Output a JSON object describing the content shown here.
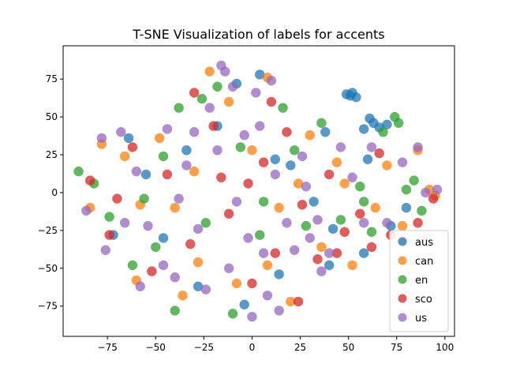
{
  "chart_data": {
    "type": "scatter",
    "title": "T-SNE Visualization of labels for accents",
    "xlabel": "",
    "ylabel": "",
    "xlim": [
      -98,
      105
    ],
    "ylim": [
      -95,
      97
    ],
    "xticks": [
      -75,
      -50,
      -25,
      0,
      25,
      50,
      75,
      100
    ],
    "yticks": [
      -75,
      -50,
      -25,
      0,
      25,
      50,
      75
    ],
    "xtick_labels": [
      "−75",
      "−50",
      "−25",
      "0",
      "25",
      "50",
      "75",
      "100"
    ],
    "ytick_labels": [
      "−75",
      "−50",
      "−25",
      "0",
      "25",
      "50",
      "75"
    ],
    "grid": false,
    "legend_position": "lower-right",
    "series": [
      {
        "name": "aus",
        "color": "#1f77b4",
        "points": [
          [
            51,
            64
          ],
          [
            52,
            66
          ],
          [
            49,
            65
          ],
          [
            54,
            63
          ],
          [
            63,
            46
          ],
          [
            66,
            43
          ],
          [
            70,
            45
          ],
          [
            61,
            49
          ],
          [
            58,
            42
          ],
          [
            -64,
            36
          ],
          [
            -55,
            12
          ],
          [
            -34,
            28
          ],
          [
            -18,
            44
          ],
          [
            -8,
            72
          ],
          [
            4,
            78
          ],
          [
            12,
            22
          ],
          [
            20,
            18
          ],
          [
            32,
            -6
          ],
          [
            42,
            -24
          ],
          [
            58,
            -40
          ],
          [
            72,
            -22
          ],
          [
            80,
            -10
          ],
          [
            60,
            22
          ],
          [
            38,
            40
          ],
          [
            -72,
            -28
          ],
          [
            -46,
            -30
          ],
          [
            -28,
            -62
          ],
          [
            -4,
            -74
          ],
          [
            14,
            -54
          ],
          [
            40,
            -48
          ]
        ]
      },
      {
        "name": "can",
        "color": "#ff7f0e",
        "points": [
          [
            -78,
            32
          ],
          [
            -66,
            24
          ],
          [
            -58,
            -8
          ],
          [
            -40,
            -10
          ],
          [
            -30,
            14
          ],
          [
            -22,
            80
          ],
          [
            -12,
            60
          ],
          [
            8,
            76
          ],
          [
            24,
            6
          ],
          [
            30,
            38
          ],
          [
            44,
            20
          ],
          [
            52,
            -48
          ],
          [
            64,
            -10
          ],
          [
            78,
            -22
          ],
          [
            86,
            28
          ],
          [
            95,
            -2
          ],
          [
            92,
            2
          ],
          [
            -84,
            -10
          ],
          [
            -60,
            -58
          ],
          [
            -36,
            -68
          ],
          [
            -8,
            -60
          ],
          [
            8,
            -48
          ],
          [
            20,
            -72
          ],
          [
            36,
            -36
          ],
          [
            -48,
            36
          ],
          [
            -28,
            -46
          ],
          [
            0,
            28
          ],
          [
            14,
            -10
          ],
          [
            48,
            6
          ],
          [
            70,
            18
          ]
        ]
      },
      {
        "name": "en",
        "color": "#2ca02c",
        "points": [
          [
            -90,
            14
          ],
          [
            -82,
            6
          ],
          [
            -74,
            -16
          ],
          [
            -62,
            -48
          ],
          [
            -50,
            -36
          ],
          [
            -46,
            24
          ],
          [
            -38,
            56
          ],
          [
            -26,
            62
          ],
          [
            -18,
            70
          ],
          [
            -6,
            30
          ],
          [
            4,
            -28
          ],
          [
            16,
            56
          ],
          [
            28,
            -22
          ],
          [
            36,
            46
          ],
          [
            46,
            -18
          ],
          [
            56,
            4
          ],
          [
            62,
            -26
          ],
          [
            68,
            40
          ],
          [
            74,
            50
          ],
          [
            76,
            46
          ],
          [
            80,
            2
          ],
          [
            84,
            8
          ],
          [
            88,
            -12
          ],
          [
            -24,
            -20
          ],
          [
            -10,
            -80
          ],
          [
            6,
            -6
          ],
          [
            22,
            28
          ],
          [
            -56,
            -4
          ],
          [
            -40,
            -78
          ],
          [
            58,
            -6
          ]
        ]
      },
      {
        "name": "sco",
        "color": "#d62728",
        "points": [
          [
            -84,
            8
          ],
          [
            -70,
            -4
          ],
          [
            -62,
            30
          ],
          [
            -52,
            -52
          ],
          [
            -44,
            12
          ],
          [
            -32,
            -34
          ],
          [
            -20,
            44
          ],
          [
            -12,
            -14
          ],
          [
            -2,
            6
          ],
          [
            6,
            20
          ],
          [
            12,
            -40
          ],
          [
            18,
            40
          ],
          [
            26,
            -8
          ],
          [
            34,
            -44
          ],
          [
            40,
            12
          ],
          [
            48,
            -26
          ],
          [
            56,
            -14
          ],
          [
            66,
            26
          ],
          [
            72,
            -28
          ],
          [
            78,
            -32
          ],
          [
            86,
            -20
          ],
          [
            94,
            -4
          ],
          [
            -74,
            -28
          ],
          [
            -30,
            66
          ],
          [
            0,
            -60
          ],
          [
            24,
            -72
          ],
          [
            -16,
            10
          ],
          [
            10,
            60
          ],
          [
            44,
            -40
          ],
          [
            62,
            -36
          ]
        ]
      },
      {
        "name": "us",
        "color": "#9467bd",
        "points": [
          [
            -78,
            36
          ],
          [
            -68,
            40
          ],
          [
            -60,
            14
          ],
          [
            -54,
            -22
          ],
          [
            -46,
            -48
          ],
          [
            -38,
            -4
          ],
          [
            -34,
            18
          ],
          [
            -28,
            -24
          ],
          [
            -22,
            56
          ],
          [
            -16,
            84
          ],
          [
            -14,
            80
          ],
          [
            -8,
            -6
          ],
          [
            -4,
            38
          ],
          [
            2,
            66
          ],
          [
            6,
            -40
          ],
          [
            10,
            74
          ],
          [
            12,
            12
          ],
          [
            18,
            -20
          ],
          [
            22,
            -38
          ],
          [
            26,
            24
          ],
          [
            30,
            -30
          ],
          [
            36,
            -52
          ],
          [
            40,
            -40
          ],
          [
            46,
            30
          ],
          [
            52,
            10
          ],
          [
            58,
            -20
          ],
          [
            62,
            30
          ],
          [
            70,
            -20
          ],
          [
            78,
            20
          ],
          [
            86,
            30
          ],
          [
            90,
            0
          ],
          [
            96,
            2
          ],
          [
            -86,
            -12
          ],
          [
            -76,
            -38
          ],
          [
            -66,
            -20
          ],
          [
            -58,
            -62
          ],
          [
            -40,
            -56
          ],
          [
            -24,
            -64
          ],
          [
            -12,
            -50
          ],
          [
            0,
            -82
          ],
          [
            8,
            -68
          ],
          [
            14,
            -78
          ],
          [
            -44,
            42
          ],
          [
            -30,
            40
          ],
          [
            -18,
            28
          ],
          [
            -10,
            70
          ],
          [
            -2,
            -30
          ],
          [
            4,
            44
          ],
          [
            28,
            4
          ],
          [
            34,
            -18
          ]
        ]
      }
    ]
  }
}
